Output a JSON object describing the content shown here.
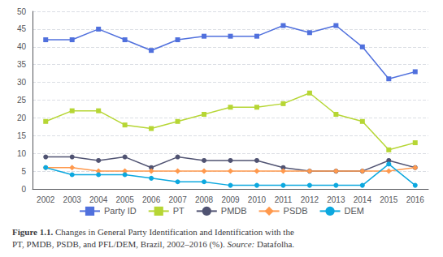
{
  "chart_data": {
    "type": "line",
    "categories": [
      "2002",
      "2003",
      "2004",
      "2005",
      "2006",
      "2007",
      "2008",
      "2009",
      "2010",
      "2011",
      "2012",
      "2013",
      "2014",
      "2015",
      "2016"
    ],
    "series": [
      {
        "name": "Party ID",
        "marker": "square",
        "values": [
          42,
          42,
          45,
          42,
          39,
          42,
          43,
          43,
          43,
          46,
          44,
          46,
          40,
          31,
          33
        ]
      },
      {
        "name": "PT",
        "marker": "square",
        "values": [
          19,
          22,
          22,
          18,
          17,
          19,
          21,
          23,
          23,
          24,
          27,
          21,
          19,
          11,
          13
        ]
      },
      {
        "name": "PMDB",
        "marker": "circle",
        "values": [
          9,
          9,
          8,
          9,
          6,
          9,
          8,
          8,
          8,
          6,
          5,
          5,
          5,
          8,
          6
        ]
      },
      {
        "name": "PSDB",
        "marker": "diamond",
        "values": [
          6,
          6,
          5,
          5,
          5,
          5,
          5,
          5,
          5,
          5,
          5,
          5,
          5,
          5,
          6
        ]
      },
      {
        "name": "DEM",
        "marker": "circle",
        "values": [
          6,
          4,
          4,
          4,
          3,
          2,
          2,
          1,
          1,
          1,
          1,
          1,
          1,
          7,
          1
        ]
      }
    ],
    "ylim": [
      0,
      50
    ],
    "yticks": [
      0,
      5,
      10,
      15,
      20,
      25,
      30,
      35,
      40,
      45,
      50
    ],
    "grid": true,
    "legend": "bottom",
    "annotations": [
      "Figure 1.1.",
      "Changes in General Party Identification and Identification with the\nPT, PMDB, PSDB, and PFL/DEM, Brazil, 2002–2016 (%).",
      "Source:",
      "Datafolha."
    ]
  }
}
